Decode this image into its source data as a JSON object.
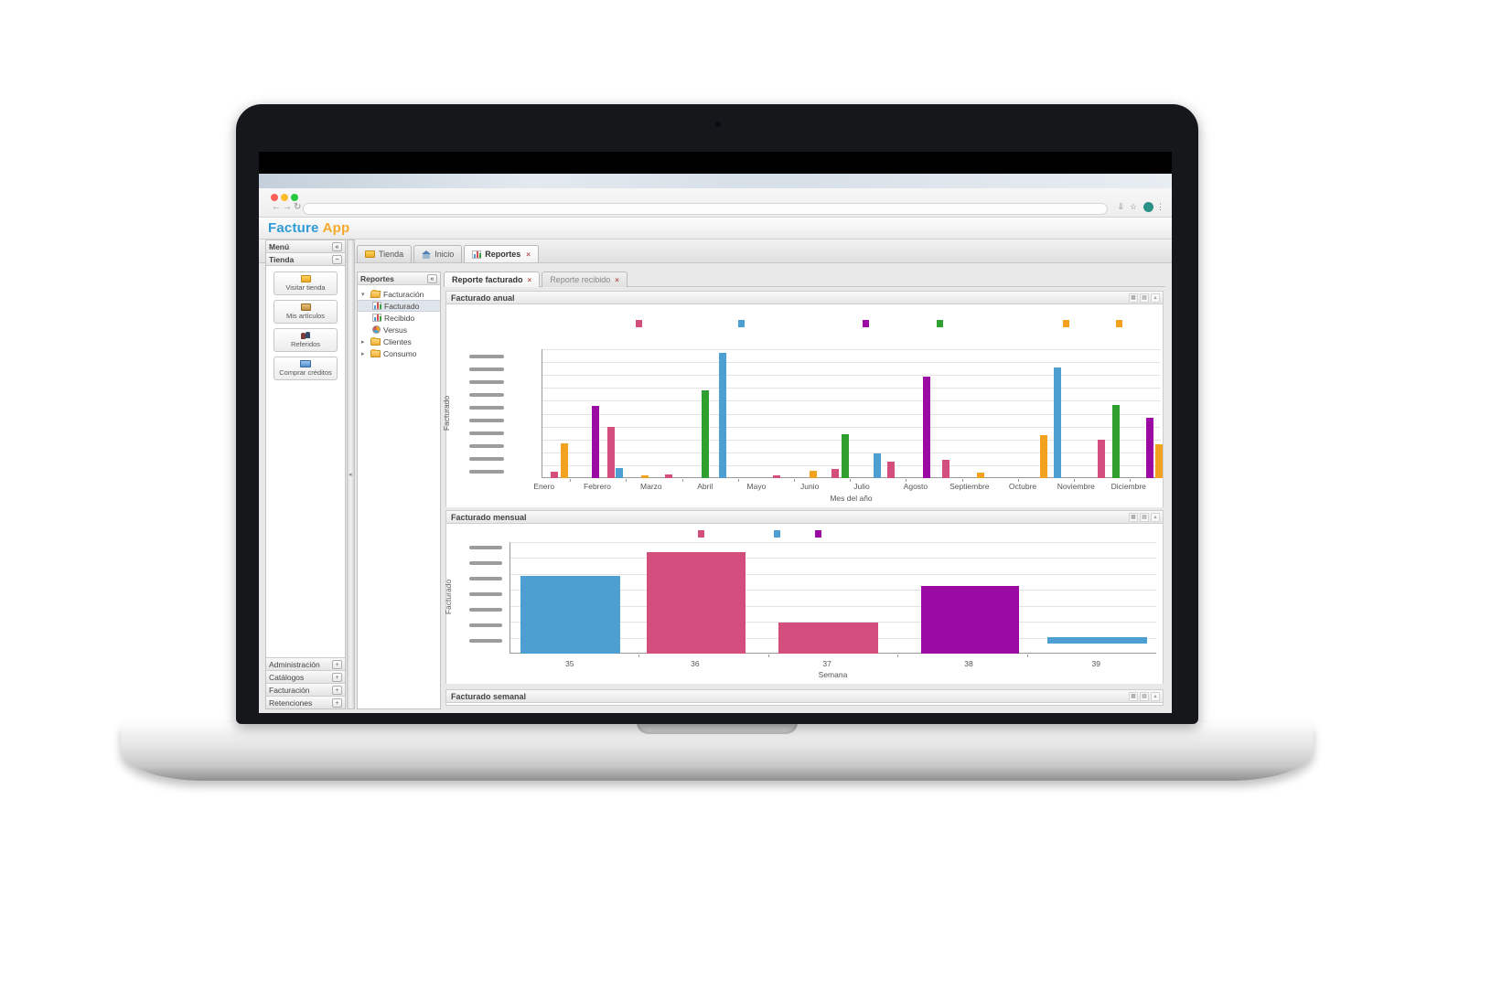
{
  "browser": {
    "traffic_lights": {
      "close": "#ff6058",
      "minimize": "#ffbd2e",
      "maximize": "#28c841"
    },
    "back_glyph": "←",
    "forward_glyph": "→",
    "reload_glyph": "↻",
    "url_value": "",
    "reader_glyph": "⇩",
    "star_glyph": "☆",
    "menu_glyph": "⋮",
    "avatar_color": "#2a9187"
  },
  "app": {
    "logo_primary": "Facture",
    "logo_secondary": "App",
    "logo_primary_color": "#2e9bd6",
    "logo_secondary_color": "#f5a623"
  },
  "sidebar": {
    "menu_header": {
      "title": "Menú",
      "collapse_glyph": "«"
    },
    "section_header": {
      "title": "Tienda",
      "toggle_glyph": "−"
    },
    "buttons": [
      {
        "label": "Visitar tienda",
        "icon": "store-icon"
      },
      {
        "label": "Mis artículos",
        "icon": "articles-icon"
      },
      {
        "label": "Referidos",
        "icon": "referrals-icon"
      },
      {
        "label": "Comprar créditos",
        "icon": "credits-icon"
      }
    ],
    "collapsed_sections": [
      {
        "label": "Administración",
        "toggle_glyph": "+"
      },
      {
        "label": "Catálogos",
        "toggle_glyph": "+"
      },
      {
        "label": "Facturación",
        "toggle_glyph": "+"
      },
      {
        "label": "Retenciones",
        "toggle_glyph": "+"
      }
    ]
  },
  "main_tabs": [
    {
      "label": "Tienda",
      "icon": "store-tab-icon",
      "active": false
    },
    {
      "label": "Inicio",
      "icon": "home-icon",
      "active": false
    },
    {
      "label": "Reportes",
      "icon": "chart-tab-icon",
      "active": true,
      "close_glyph": "×"
    }
  ],
  "tree_panel": {
    "title": "Reportes",
    "collapse_glyph": "«",
    "items": [
      {
        "label": "Facturación",
        "icon": "open-folder-icon",
        "arrow": "▾",
        "level": 0,
        "selected": false
      },
      {
        "label": "Facturado",
        "icon": "bar-chart-icon",
        "arrow": "",
        "level": 1,
        "selected": true
      },
      {
        "label": "Recibido",
        "icon": "bar-chart-icon",
        "arrow": "",
        "level": 1,
        "selected": false
      },
      {
        "label": "Versus",
        "icon": "pie-chart-icon",
        "arrow": "",
        "level": 1,
        "selected": false
      },
      {
        "label": "Clientes",
        "icon": "folder-icon",
        "arrow": "▸",
        "level": 0,
        "selected": false
      },
      {
        "label": "Consumo",
        "icon": "folder-icon",
        "arrow": "▸",
        "level": 0,
        "selected": false
      }
    ]
  },
  "content_tabs": [
    {
      "label": "Reporte facturado",
      "active": true,
      "close_glyph": "×"
    },
    {
      "label": "Reporte recibido",
      "active": false,
      "close_glyph": "×"
    }
  ],
  "panels": [
    {
      "title": "Facturado anual"
    },
    {
      "title": "Facturado mensual"
    },
    {
      "title": "Facturado semanal"
    }
  ],
  "panel_icons": [
    {
      "name": "grid",
      "glyph": "▦"
    },
    {
      "name": "export",
      "glyph": "▤"
    },
    {
      "name": "collapse",
      "glyph": "▴"
    }
  ],
  "splitter_glyph": "◂",
  "palette": {
    "blue": "#4d9fd1",
    "pink": "#d34e7c",
    "purple": "#9b0aa2",
    "green": "#2fa02f",
    "orange": "#f2a21e"
  },
  "chart_data": [
    {
      "type": "bar",
      "title": "Facturado anual",
      "xlabel": "Mes del año",
      "ylabel": "Facturado",
      "categories": [
        "Enero",
        "Febrero",
        "Marzo",
        "Abril",
        "Mayo",
        "Junio",
        "Julio",
        "Agosto",
        "Septiembre",
        "Octubre",
        "Noviembre",
        "Diciembre"
      ],
      "category_x_pct": [
        0.4,
        9.0,
        17.7,
        26.4,
        34.7,
        43.3,
        51.7,
        60.4,
        69.1,
        77.7,
        86.3,
        94.8
      ],
      "y_axis": {
        "tick_labels_redacted": true,
        "redacted_tick_pill_count": 10
      },
      "gridline_count": 10,
      "legend": {
        "labels_visible": false,
        "marks": [
          {
            "color": "pink",
            "x_pct": 15.2
          },
          {
            "color": "blue",
            "x_pct": 31.8
          },
          {
            "color": "purple",
            "x_pct": 51.8
          },
          {
            "color": "green",
            "x_pct": 63.8
          },
          {
            "color": "orange",
            "x_pct": 84.2
          },
          {
            "color": "orange",
            "x_pct": 92.8
          }
        ]
      },
      "note": "Y tick values are blurred out in the screenshot; bar heights are % of plot height",
      "bars": [
        {
          "month": "Enero",
          "color": "pink",
          "x_pct": 1.3,
          "height_pct": 5
        },
        {
          "month": "Enero",
          "color": "orange",
          "x_pct": 3.0,
          "height_pct": 27
        },
        {
          "month": "Febrero",
          "color": "purple",
          "x_pct": 8.0,
          "height_pct": 56
        },
        {
          "month": "Febrero",
          "color": "pink",
          "x_pct": 10.5,
          "height_pct": 40
        },
        {
          "month": "Febrero",
          "color": "blue",
          "x_pct": 11.8,
          "height_pct": 8
        },
        {
          "month": "Marzo",
          "color": "orange",
          "x_pct": 16.0,
          "height_pct": 2
        },
        {
          "month": "Marzo",
          "color": "pink",
          "x_pct": 19.8,
          "height_pct": 3
        },
        {
          "month": "Abril",
          "color": "green",
          "x_pct": 25.7,
          "height_pct": 68
        },
        {
          "month": "Abril",
          "color": "blue",
          "x_pct": 28.5,
          "height_pct": 97
        },
        {
          "month": "Mayo",
          "color": "pink",
          "x_pct": 37.2,
          "height_pct": 2
        },
        {
          "month": "Junio",
          "color": "orange",
          "x_pct": 43.1,
          "height_pct": 6
        },
        {
          "month": "Junio",
          "color": "pink",
          "x_pct": 46.7,
          "height_pct": 7
        },
        {
          "month": "Junio",
          "color": "green",
          "x_pct": 48.3,
          "height_pct": 34
        },
        {
          "month": "Julio",
          "color": "blue",
          "x_pct": 53.5,
          "height_pct": 19
        },
        {
          "month": "Julio",
          "color": "pink",
          "x_pct": 55.7,
          "height_pct": 13
        },
        {
          "month": "Agosto",
          "color": "purple",
          "x_pct": 61.4,
          "height_pct": 79
        },
        {
          "month": "Agosto",
          "color": "pink",
          "x_pct": 64.5,
          "height_pct": 14
        },
        {
          "month": "Septiembre",
          "color": "orange",
          "x_pct": 70.2,
          "height_pct": 4
        },
        {
          "month": "Octubre",
          "color": "orange",
          "x_pct": 80.4,
          "height_pct": 33
        },
        {
          "month": "Octubre",
          "color": "blue",
          "x_pct": 82.6,
          "height_pct": 86
        },
        {
          "month": "Noviembre",
          "color": "pink",
          "x_pct": 89.7,
          "height_pct": 30
        },
        {
          "month": "Noviembre",
          "color": "green",
          "x_pct": 92.0,
          "height_pct": 57
        },
        {
          "month": "Diciembre",
          "color": "purple",
          "x_pct": 97.5,
          "height_pct": 47
        },
        {
          "month": "Diciembre",
          "color": "orange",
          "x_pct": 99.0,
          "height_pct": 26
        }
      ]
    },
    {
      "type": "bar",
      "title": "Facturado mensual",
      "xlabel": "Semana",
      "ylabel": "Facturado",
      "categories": [
        "35",
        "36",
        "37",
        "38",
        "39"
      ],
      "category_x_pct": [
        9.3,
        28.7,
        49.1,
        71.0,
        90.7
      ],
      "y_axis": {
        "tick_labels_redacted": true,
        "redacted_tick_pill_count": 7
      },
      "gridline_count": 7,
      "legend": {
        "labels_visible": false,
        "marks": [
          {
            "color": "pink",
            "x_pct": 29.1
          },
          {
            "color": "blue",
            "x_pct": 40.9
          },
          {
            "color": "purple",
            "x_pct": 47.2
          }
        ]
      },
      "note": "Y tick values are blurred out in the screenshot; bar heights are % of plot height",
      "bars": [
        {
          "week": "35",
          "color": "blue",
          "x_pct": 1.6,
          "width_pct": 15.4,
          "height_pct": 70,
          "bottom_offset_pct": 0
        },
        {
          "week": "36",
          "color": "pink",
          "x_pct": 21.1,
          "width_pct": 15.3,
          "height_pct": 91,
          "bottom_offset_pct": 0
        },
        {
          "week": "37",
          "color": "pink",
          "x_pct": 41.4,
          "width_pct": 15.4,
          "height_pct": 28,
          "bottom_offset_pct": 0
        },
        {
          "week": "38",
          "color": "purple",
          "x_pct": 63.5,
          "width_pct": 15.1,
          "height_pct": 61,
          "bottom_offset_pct": 0
        },
        {
          "week": "39",
          "color": "blue",
          "x_pct": 83.0,
          "width_pct": 15.4,
          "height_pct": 6,
          "bottom_offset_pct": 9
        }
      ]
    }
  ]
}
